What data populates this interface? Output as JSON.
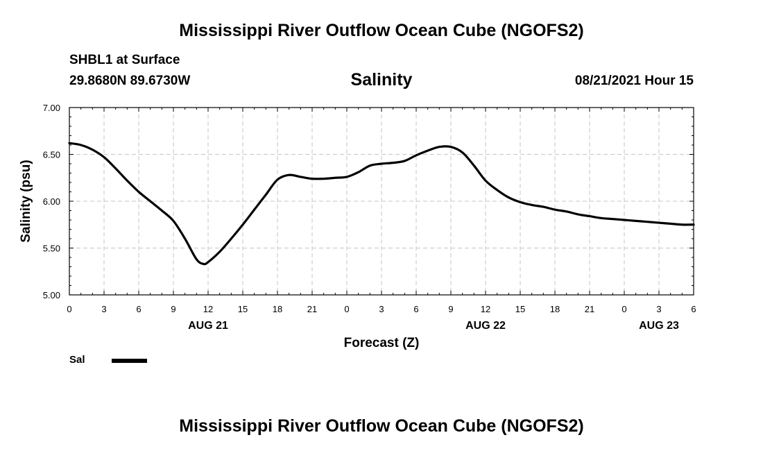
{
  "header": {
    "title": "Mississippi River Outflow Ocean Cube (NGOFS2)",
    "station": "SHBL1 at Surface",
    "coordinates": "29.8680N  89.6730W",
    "variable": "Salinity",
    "timestamp": "08/21/2021 Hour 15"
  },
  "footer": {
    "title": "Mississippi River Outflow Ocean Cube (NGOFS2)"
  },
  "legend": {
    "label": "Sal"
  },
  "chart_data": {
    "type": "line",
    "title": "Salinity",
    "xlabel": "Forecast (Z)",
    "ylabel": "Salinity (psu)",
    "xlim": [
      0,
      54
    ],
    "ylim": [
      5.0,
      7.0
    ],
    "grid": true,
    "legend_position": "bottom-left",
    "x_ticks": [
      0,
      3,
      6,
      9,
      12,
      15,
      18,
      21,
      24,
      27,
      30,
      33,
      36,
      39,
      42,
      45,
      48,
      51,
      54
    ],
    "x_tick_labels": [
      "0",
      "3",
      "6",
      "9",
      "12",
      "15",
      "18",
      "21",
      "0",
      "3",
      "6",
      "9",
      "12",
      "15",
      "18",
      "21",
      "0",
      "3",
      "6"
    ],
    "y_ticks": [
      5.0,
      5.5,
      6.0,
      6.5,
      7.0
    ],
    "y_tick_labels": [
      "5.00",
      "5.50",
      "6.00",
      "6.50",
      "7.00"
    ],
    "date_labels": [
      {
        "x": 12,
        "text": "AUG 21"
      },
      {
        "x": 36,
        "text": "AUG 22"
      },
      {
        "x": 51,
        "text": "AUG 23"
      }
    ],
    "series": [
      {
        "name": "Sal",
        "color": "#000000",
        "x": [
          0,
          1,
          2,
          3,
          4,
          5,
          6,
          7,
          8,
          9,
          10,
          11,
          11.6,
          12,
          13,
          14,
          15,
          16,
          17,
          18,
          19,
          20,
          21,
          22,
          23,
          24,
          25,
          26,
          27,
          28,
          29,
          30,
          31,
          32,
          33,
          34,
          35,
          36,
          37,
          38,
          39,
          40,
          41,
          42,
          43,
          44,
          45,
          46,
          47,
          48,
          49,
          50,
          51,
          52,
          53,
          54
        ],
        "values": [
          6.62,
          6.6,
          6.55,
          6.47,
          6.35,
          6.22,
          6.1,
          6.0,
          5.9,
          5.79,
          5.6,
          5.38,
          5.33,
          5.35,
          5.46,
          5.6,
          5.75,
          5.91,
          6.07,
          6.23,
          6.28,
          6.26,
          6.24,
          6.24,
          6.25,
          6.26,
          6.31,
          6.38,
          6.4,
          6.41,
          6.43,
          6.49,
          6.54,
          6.58,
          6.58,
          6.52,
          6.38,
          6.22,
          6.12,
          6.04,
          5.99,
          5.96,
          5.94,
          5.91,
          5.89,
          5.86,
          5.84,
          5.82,
          5.81,
          5.8,
          5.79,
          5.78,
          5.77,
          5.76,
          5.75,
          5.75
        ]
      }
    ]
  }
}
